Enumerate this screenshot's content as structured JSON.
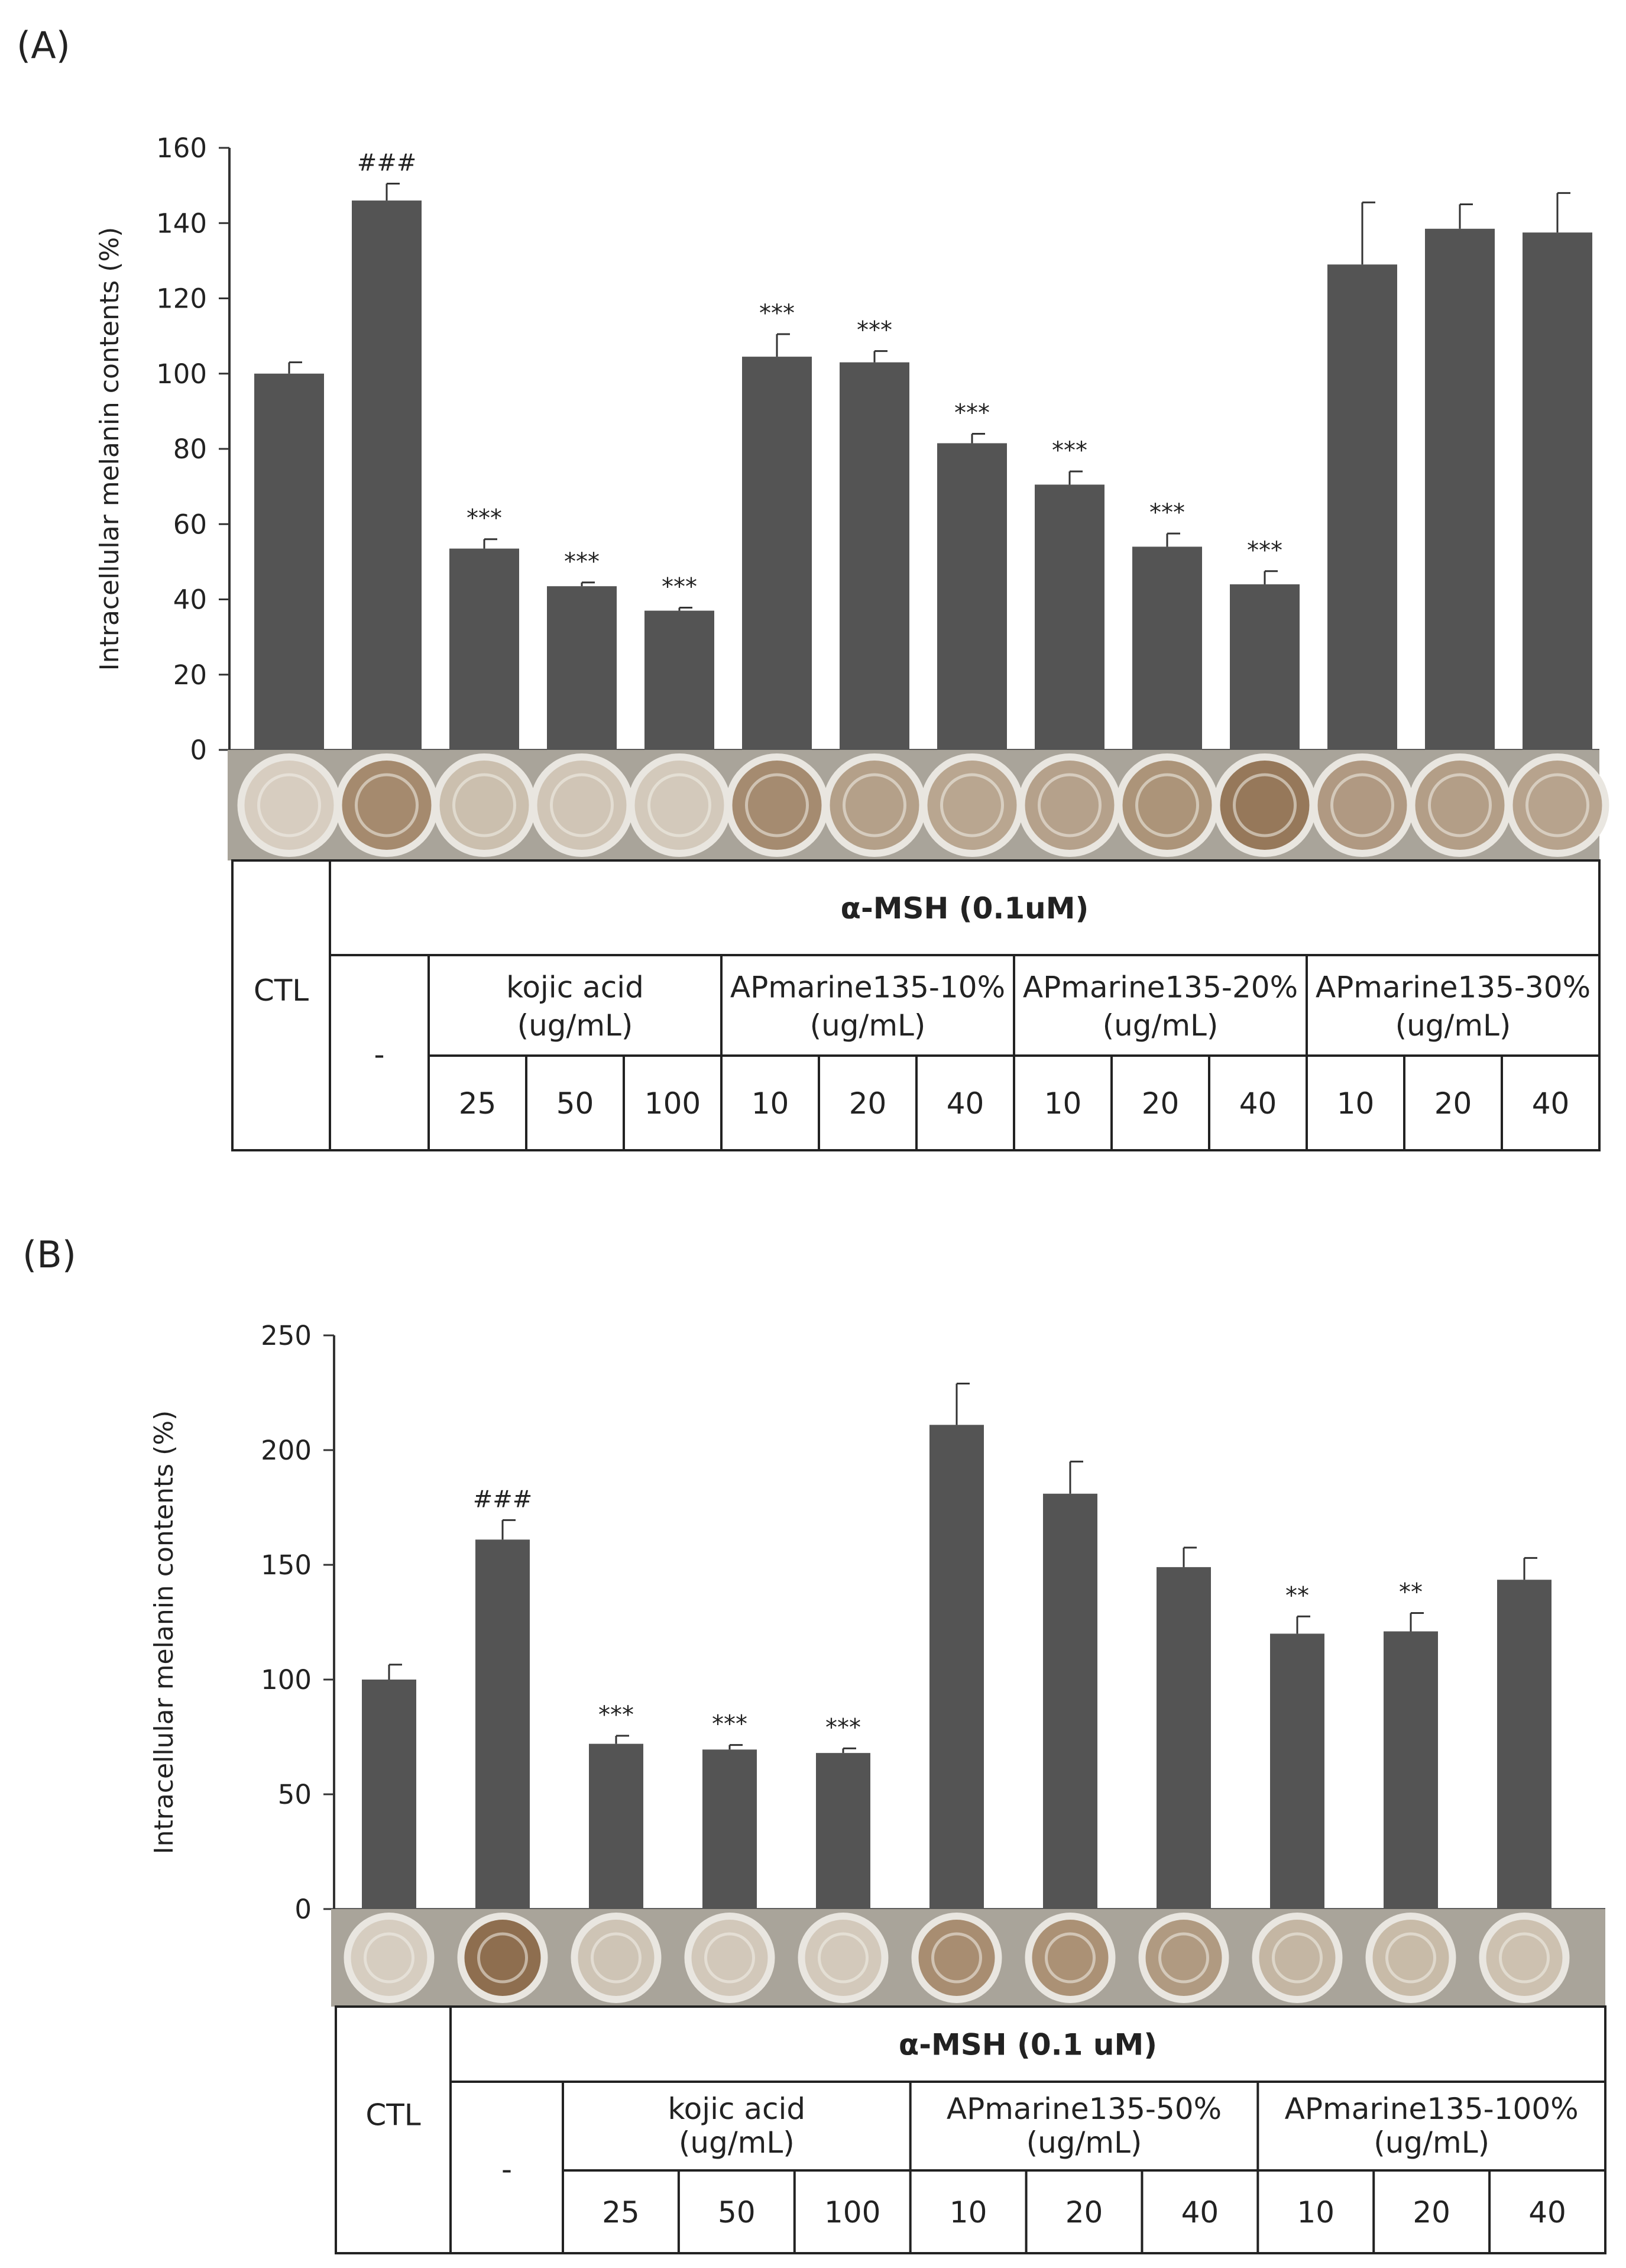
{
  "chart_data": [
    {
      "panel": "(A)",
      "type": "bar",
      "ylabel": "Intracellular melanin contents (%)",
      "ylim": [
        0,
        160
      ],
      "yticks": [
        0,
        20,
        40,
        60,
        80,
        100,
        120,
        140,
        160
      ],
      "values": [
        100,
        146,
        53.5,
        43.5,
        37,
        104.5,
        103,
        81.5,
        70.5,
        54,
        44,
        129,
        138.5,
        137.5
      ],
      "errors": [
        3,
        4.5,
        2.5,
        1,
        0.8,
        6,
        3,
        2.5,
        3.5,
        3.5,
        3.5,
        16.5,
        6.5,
        10.5
      ],
      "annotations": [
        "",
        "###",
        "***",
        "***",
        "***",
        "***",
        "***",
        "***",
        "***",
        "***",
        "***",
        "",
        "",
        ""
      ],
      "bar_color": "#545454",
      "table": {
        "ctl": "CTL",
        "treatment": "α-MSH (0.1uM)",
        "dash": "-",
        "groups": [
          {
            "line1": "kojic acid",
            "line2": "(ug/mL)",
            "doses": [
              "25",
              "50",
              "100"
            ]
          },
          {
            "line1": "APmarine135-10%",
            "line2": "(ug/mL)",
            "doses": [
              "10",
              "20",
              "40"
            ]
          },
          {
            "line1": "APmarine135-20%",
            "line2": "(ug/mL)",
            "doses": [
              "10",
              "20",
              "40"
            ]
          },
          {
            "line1": "APmarine135-30%",
            "line2": "(ug/mL)",
            "doses": [
              "10",
              "20",
              "40"
            ]
          }
        ]
      }
    },
    {
      "panel": "(B)",
      "type": "bar",
      "ylabel": "Intracellular melanin contents (%)",
      "ylim": [
        0,
        250
      ],
      "yticks": [
        0,
        50,
        100,
        150,
        200,
        250
      ],
      "values": [
        100,
        161,
        72,
        69.5,
        68,
        211,
        181,
        149,
        120,
        121,
        143.5
      ],
      "errors": [
        6.5,
        8.5,
        3.5,
        2,
        2,
        18,
        14,
        8.5,
        7.5,
        8,
        9.5
      ],
      "annotations": [
        "",
        "###",
        "***",
        "***",
        "***",
        "",
        "",
        "",
        "**",
        "**",
        ""
      ],
      "bar_color": "#545454",
      "table": {
        "ctl": "CTL",
        "treatment": "α-MSH (0.1 uM)",
        "dash": "-",
        "groups": [
          {
            "line1": "kojic acid",
            "line2": "(ug/mL)",
            "doses": [
              "25",
              "50",
              "100"
            ]
          },
          {
            "line1": "APmarine135-50%",
            "line2": "(ug/mL)",
            "doses": [
              "10",
              "20",
              "40"
            ]
          },
          {
            "line1": "APmarine135-100%",
            "line2": "(ug/mL)",
            "doses": [
              "10",
              "20",
              "40"
            ]
          }
        ]
      }
    }
  ],
  "well_colors_a": [
    "#d7cdc0",
    "#a58a6e",
    "#cbbfae",
    "#d0c5b6",
    "#d3c9bb",
    "#a58b70",
    "#b4a089",
    "#b9a690",
    "#b5a18b",
    "#ac9479",
    "#96785a",
    "#b09982",
    "#b39e87",
    "#b7a38d"
  ],
  "well_colors_b": [
    "#d6cdc0",
    "#8e6e4f",
    "#cec4b5",
    "#d2c8ba",
    "#d3c9bb",
    "#a88d71",
    "#ab9175",
    "#b09a81",
    "#c4b6a3",
    "#c8bba8",
    "#cdc1b0"
  ]
}
